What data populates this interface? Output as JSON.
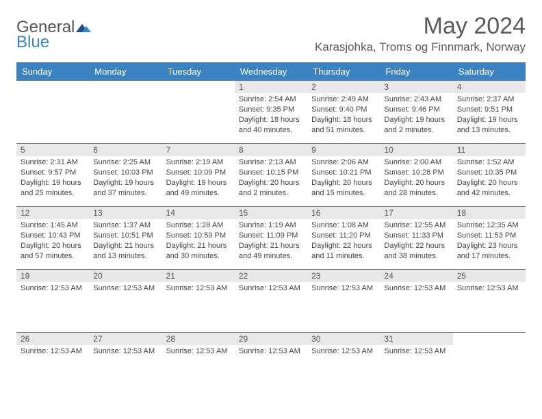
{
  "logo": {
    "line1": "General",
    "line2": "Blue"
  },
  "header": {
    "month_title": "May 2024",
    "location": "Karasjohka, Troms og Finnmark, Norway"
  },
  "colors": {
    "header_bg": "#3b83c0",
    "header_text": "#ffffff",
    "daynum_bg": "#e8e8e8",
    "text": "#444444",
    "rule": "#3b83c0"
  },
  "weekdays": [
    "Sunday",
    "Monday",
    "Tuesday",
    "Wednesday",
    "Thursday",
    "Friday",
    "Saturday"
  ],
  "weeks": [
    [
      {
        "n": "",
        "sunrise": "",
        "sunset": "",
        "daylight": ""
      },
      {
        "n": "",
        "sunrise": "",
        "sunset": "",
        "daylight": ""
      },
      {
        "n": "",
        "sunrise": "",
        "sunset": "",
        "daylight": ""
      },
      {
        "n": "1",
        "sunrise": "Sunrise: 2:54 AM",
        "sunset": "Sunset: 9:35 PM",
        "daylight": "Daylight: 18 hours and 40 minutes."
      },
      {
        "n": "2",
        "sunrise": "Sunrise: 2:49 AM",
        "sunset": "Sunset: 9:40 PM",
        "daylight": "Daylight: 18 hours and 51 minutes."
      },
      {
        "n": "3",
        "sunrise": "Sunrise: 2:43 AM",
        "sunset": "Sunset: 9:46 PM",
        "daylight": "Daylight: 19 hours and 2 minutes."
      },
      {
        "n": "4",
        "sunrise": "Sunrise: 2:37 AM",
        "sunset": "Sunset: 9:51 PM",
        "daylight": "Daylight: 19 hours and 13 minutes."
      }
    ],
    [
      {
        "n": "5",
        "sunrise": "Sunrise: 2:31 AM",
        "sunset": "Sunset: 9:57 PM",
        "daylight": "Daylight: 19 hours and 25 minutes."
      },
      {
        "n": "6",
        "sunrise": "Sunrise: 2:25 AM",
        "sunset": "Sunset: 10:03 PM",
        "daylight": "Daylight: 19 hours and 37 minutes."
      },
      {
        "n": "7",
        "sunrise": "Sunrise: 2:19 AM",
        "sunset": "Sunset: 10:09 PM",
        "daylight": "Daylight: 19 hours and 49 minutes."
      },
      {
        "n": "8",
        "sunrise": "Sunrise: 2:13 AM",
        "sunset": "Sunset: 10:15 PM",
        "daylight": "Daylight: 20 hours and 2 minutes."
      },
      {
        "n": "9",
        "sunrise": "Sunrise: 2:06 AM",
        "sunset": "Sunset: 10:21 PM",
        "daylight": "Daylight: 20 hours and 15 minutes."
      },
      {
        "n": "10",
        "sunrise": "Sunrise: 2:00 AM",
        "sunset": "Sunset: 10:28 PM",
        "daylight": "Daylight: 20 hours and 28 minutes."
      },
      {
        "n": "11",
        "sunrise": "Sunrise: 1:52 AM",
        "sunset": "Sunset: 10:35 PM",
        "daylight": "Daylight: 20 hours and 42 minutes."
      }
    ],
    [
      {
        "n": "12",
        "sunrise": "Sunrise: 1:45 AM",
        "sunset": "Sunset: 10:43 PM",
        "daylight": "Daylight: 20 hours and 57 minutes."
      },
      {
        "n": "13",
        "sunrise": "Sunrise: 1:37 AM",
        "sunset": "Sunset: 10:51 PM",
        "daylight": "Daylight: 21 hours and 13 minutes."
      },
      {
        "n": "14",
        "sunrise": "Sunrise: 1:28 AM",
        "sunset": "Sunset: 10:59 PM",
        "daylight": "Daylight: 21 hours and 30 minutes."
      },
      {
        "n": "15",
        "sunrise": "Sunrise: 1:19 AM",
        "sunset": "Sunset: 11:09 PM",
        "daylight": "Daylight: 21 hours and 49 minutes."
      },
      {
        "n": "16",
        "sunrise": "Sunrise: 1:08 AM",
        "sunset": "Sunset: 11:20 PM",
        "daylight": "Daylight: 22 hours and 11 minutes."
      },
      {
        "n": "17",
        "sunrise": "Sunrise: 12:55 AM",
        "sunset": "Sunset: 11:33 PM",
        "daylight": "Daylight: 22 hours and 38 minutes."
      },
      {
        "n": "18",
        "sunrise": "Sunrise: 12:35 AM",
        "sunset": "Sunset: 11:53 PM",
        "daylight": "Daylight: 23 hours and 17 minutes."
      }
    ],
    [
      {
        "n": "19",
        "sunrise": "Sunrise: 12:53 AM",
        "sunset": "",
        "daylight": ""
      },
      {
        "n": "20",
        "sunrise": "Sunrise: 12:53 AM",
        "sunset": "",
        "daylight": ""
      },
      {
        "n": "21",
        "sunrise": "Sunrise: 12:53 AM",
        "sunset": "",
        "daylight": ""
      },
      {
        "n": "22",
        "sunrise": "Sunrise: 12:53 AM",
        "sunset": "",
        "daylight": ""
      },
      {
        "n": "23",
        "sunrise": "Sunrise: 12:53 AM",
        "sunset": "",
        "daylight": ""
      },
      {
        "n": "24",
        "sunrise": "Sunrise: 12:53 AM",
        "sunset": "",
        "daylight": ""
      },
      {
        "n": "25",
        "sunrise": "Sunrise: 12:53 AM",
        "sunset": "",
        "daylight": ""
      }
    ],
    [
      {
        "n": "26",
        "sunrise": "Sunrise: 12:53 AM",
        "sunset": "",
        "daylight": ""
      },
      {
        "n": "27",
        "sunrise": "Sunrise: 12:53 AM",
        "sunset": "",
        "daylight": ""
      },
      {
        "n": "28",
        "sunrise": "Sunrise: 12:53 AM",
        "sunset": "",
        "daylight": ""
      },
      {
        "n": "29",
        "sunrise": "Sunrise: 12:53 AM",
        "sunset": "",
        "daylight": ""
      },
      {
        "n": "30",
        "sunrise": "Sunrise: 12:53 AM",
        "sunset": "",
        "daylight": ""
      },
      {
        "n": "31",
        "sunrise": "Sunrise: 12:53 AM",
        "sunset": "",
        "daylight": ""
      },
      {
        "n": "",
        "sunrise": "",
        "sunset": "",
        "daylight": ""
      }
    ]
  ]
}
